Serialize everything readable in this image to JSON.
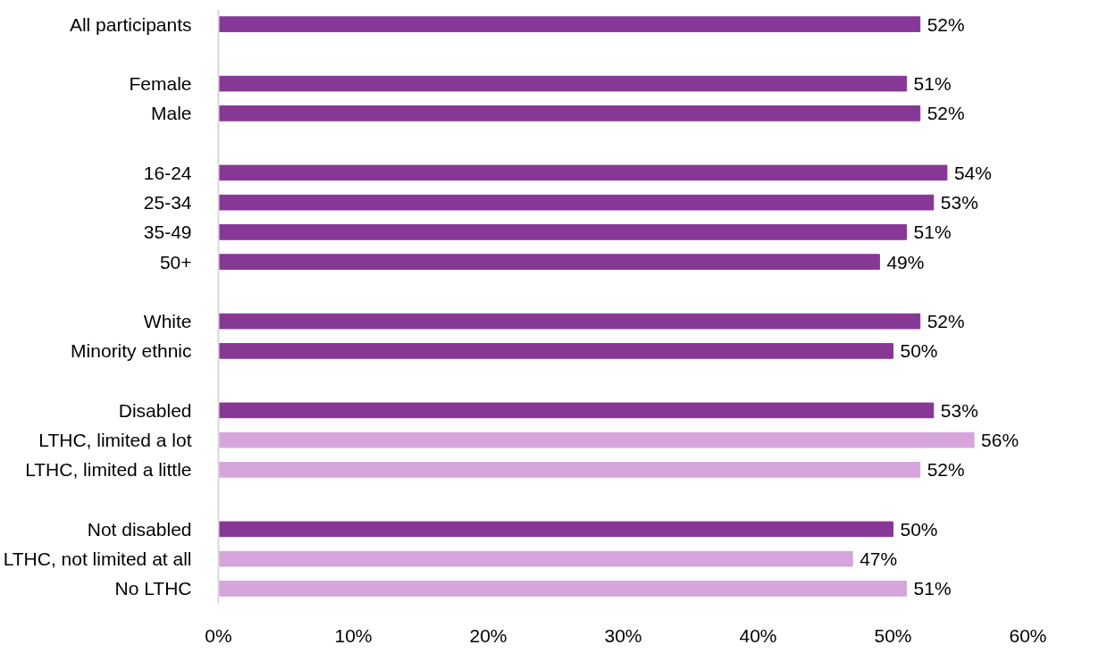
{
  "chart_data": {
    "type": "bar",
    "orientation": "horizontal",
    "categories": [
      "All participants",
      null,
      "Female",
      "Male",
      null,
      "16-24",
      "25-34",
      "35-49",
      "50+",
      null,
      "White",
      "Minority ethnic",
      null,
      "Disabled",
      "LTHC, limited a lot",
      "LTHC, limited a little",
      null,
      "Not disabled",
      "LTHC, not limited at all",
      "No LTHC"
    ],
    "values": [
      52,
      null,
      51,
      52,
      null,
      54,
      53,
      51,
      49,
      null,
      52,
      50,
      null,
      53,
      56,
      52,
      null,
      50,
      47,
      51
    ],
    "value_labels": [
      "52%",
      null,
      "51%",
      "52%",
      null,
      "54%",
      "53%",
      "51%",
      "49%",
      null,
      "52%",
      "50%",
      null,
      "53%",
      "56%",
      "52%",
      null,
      "50%",
      "47%",
      "51%"
    ],
    "colors": [
      "#873795",
      null,
      "#873795",
      "#873795",
      null,
      "#873795",
      "#873795",
      "#873795",
      "#873795",
      null,
      "#873795",
      "#873795",
      null,
      "#873795",
      "#d6a5dc",
      "#d6a5dc",
      null,
      "#873795",
      "#d6a5dc",
      "#d6a5dc"
    ],
    "xlim": [
      0,
      60
    ],
    "xticks": [
      {
        "value": 0,
        "label": "0%"
      },
      {
        "value": 10,
        "label": "10%"
      },
      {
        "value": 20,
        "label": "20%"
      },
      {
        "value": 30,
        "label": "30%"
      },
      {
        "value": 40,
        "label": "40%"
      },
      {
        "value": 50,
        "label": "50%"
      },
      {
        "value": 60,
        "label": "60%"
      }
    ],
    "grid": false
  }
}
